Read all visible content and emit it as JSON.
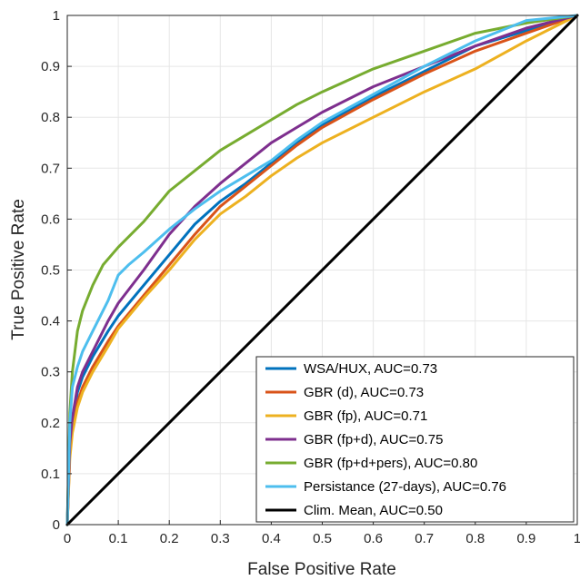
{
  "chart_data": {
    "type": "line",
    "xlabel": "False Positive Rate",
    "ylabel": "True Positive Rate",
    "xlim": [
      0,
      1
    ],
    "ylim": [
      0,
      1
    ],
    "x_ticks": [
      "0",
      "0.1",
      "0.2",
      "0.3",
      "0.4",
      "0.5",
      "0.6",
      "0.7",
      "0.8",
      "0.9",
      "1"
    ],
    "y_ticks": [
      "0",
      "0.1",
      "0.2",
      "0.3",
      "0.4",
      "0.5",
      "0.6",
      "0.7",
      "0.8",
      "0.9",
      "1"
    ],
    "grid": true,
    "legend_position": "bottom-right",
    "series": [
      {
        "name": "WSA/HUX, AUC=0.73",
        "color": "#0072BD",
        "points": [
          [
            0,
            0
          ],
          [
            0.005,
            0.15
          ],
          [
            0.01,
            0.2
          ],
          [
            0.02,
            0.26
          ],
          [
            0.03,
            0.29
          ],
          [
            0.05,
            0.33
          ],
          [
            0.08,
            0.38
          ],
          [
            0.1,
            0.41
          ],
          [
            0.15,
            0.47
          ],
          [
            0.2,
            0.53
          ],
          [
            0.25,
            0.59
          ],
          [
            0.3,
            0.635
          ],
          [
            0.35,
            0.67
          ],
          [
            0.4,
            0.71
          ],
          [
            0.45,
            0.75
          ],
          [
            0.5,
            0.785
          ],
          [
            0.6,
            0.84
          ],
          [
            0.7,
            0.89
          ],
          [
            0.8,
            0.94
          ],
          [
            0.9,
            0.97
          ],
          [
            1,
            1
          ]
        ]
      },
      {
        "name": "GBR (d), AUC=0.73",
        "color": "#D95319",
        "points": [
          [
            0,
            0
          ],
          [
            0.005,
            0.14
          ],
          [
            0.01,
            0.19
          ],
          [
            0.02,
            0.24
          ],
          [
            0.03,
            0.27
          ],
          [
            0.05,
            0.31
          ],
          [
            0.08,
            0.36
          ],
          [
            0.1,
            0.39
          ],
          [
            0.15,
            0.45
          ],
          [
            0.2,
            0.51
          ],
          [
            0.25,
            0.57
          ],
          [
            0.3,
            0.625
          ],
          [
            0.35,
            0.665
          ],
          [
            0.4,
            0.705
          ],
          [
            0.45,
            0.745
          ],
          [
            0.5,
            0.78
          ],
          [
            0.6,
            0.835
          ],
          [
            0.7,
            0.885
          ],
          [
            0.8,
            0.93
          ],
          [
            0.9,
            0.965
          ],
          [
            1,
            1
          ]
        ]
      },
      {
        "name": "GBR (fp), AUC=0.71",
        "color": "#EDB120",
        "points": [
          [
            0,
            0
          ],
          [
            0.005,
            0.13
          ],
          [
            0.01,
            0.18
          ],
          [
            0.02,
            0.23
          ],
          [
            0.03,
            0.26
          ],
          [
            0.05,
            0.3
          ],
          [
            0.08,
            0.35
          ],
          [
            0.1,
            0.385
          ],
          [
            0.15,
            0.445
          ],
          [
            0.2,
            0.5
          ],
          [
            0.25,
            0.56
          ],
          [
            0.3,
            0.61
          ],
          [
            0.35,
            0.645
          ],
          [
            0.4,
            0.685
          ],
          [
            0.45,
            0.72
          ],
          [
            0.5,
            0.75
          ],
          [
            0.6,
            0.8
          ],
          [
            0.7,
            0.85
          ],
          [
            0.8,
            0.895
          ],
          [
            0.9,
            0.95
          ],
          [
            1,
            1
          ]
        ]
      },
      {
        "name": "GBR (fp+d), AUC=0.75",
        "color": "#7E2F8E",
        "points": [
          [
            0,
            0
          ],
          [
            0.005,
            0.16
          ],
          [
            0.01,
            0.21
          ],
          [
            0.02,
            0.27
          ],
          [
            0.03,
            0.3
          ],
          [
            0.05,
            0.34
          ],
          [
            0.08,
            0.4
          ],
          [
            0.1,
            0.435
          ],
          [
            0.15,
            0.5
          ],
          [
            0.2,
            0.57
          ],
          [
            0.25,
            0.625
          ],
          [
            0.3,
            0.67
          ],
          [
            0.35,
            0.71
          ],
          [
            0.4,
            0.75
          ],
          [
            0.45,
            0.78
          ],
          [
            0.5,
            0.81
          ],
          [
            0.6,
            0.86
          ],
          [
            0.7,
            0.9
          ],
          [
            0.8,
            0.94
          ],
          [
            0.9,
            0.975
          ],
          [
            1,
            1
          ]
        ]
      },
      {
        "name": "GBR (fp+d+pers), AUC=0.80",
        "color": "#77AC30",
        "points": [
          [
            0,
            0
          ],
          [
            0.005,
            0.22
          ],
          [
            0.01,
            0.3
          ],
          [
            0.02,
            0.38
          ],
          [
            0.03,
            0.42
          ],
          [
            0.05,
            0.47
          ],
          [
            0.07,
            0.51
          ],
          [
            0.1,
            0.545
          ],
          [
            0.15,
            0.595
          ],
          [
            0.2,
            0.655
          ],
          [
            0.25,
            0.695
          ],
          [
            0.3,
            0.735
          ],
          [
            0.35,
            0.765
          ],
          [
            0.4,
            0.795
          ],
          [
            0.45,
            0.825
          ],
          [
            0.5,
            0.85
          ],
          [
            0.6,
            0.895
          ],
          [
            0.7,
            0.93
          ],
          [
            0.8,
            0.965
          ],
          [
            0.9,
            0.985
          ],
          [
            1,
            1
          ]
        ]
      },
      {
        "name": "Persistance (27-days), AUC=0.76",
        "color": "#4DBEEE",
        "points": [
          [
            0,
            0
          ],
          [
            0.005,
            0.2
          ],
          [
            0.01,
            0.27
          ],
          [
            0.02,
            0.31
          ],
          [
            0.03,
            0.34
          ],
          [
            0.05,
            0.38
          ],
          [
            0.08,
            0.44
          ],
          [
            0.1,
            0.49
          ],
          [
            0.12,
            0.51
          ],
          [
            0.15,
            0.535
          ],
          [
            0.2,
            0.58
          ],
          [
            0.25,
            0.62
          ],
          [
            0.3,
            0.655
          ],
          [
            0.35,
            0.685
          ],
          [
            0.4,
            0.715
          ],
          [
            0.45,
            0.755
          ],
          [
            0.5,
            0.79
          ],
          [
            0.6,
            0.845
          ],
          [
            0.7,
            0.9
          ],
          [
            0.8,
            0.95
          ],
          [
            0.9,
            0.99
          ],
          [
            1,
            1
          ]
        ]
      },
      {
        "name": "Clim. Mean, AUC=0.50",
        "color": "#000000",
        "points": [
          [
            0,
            0
          ],
          [
            1,
            1
          ]
        ]
      }
    ]
  }
}
